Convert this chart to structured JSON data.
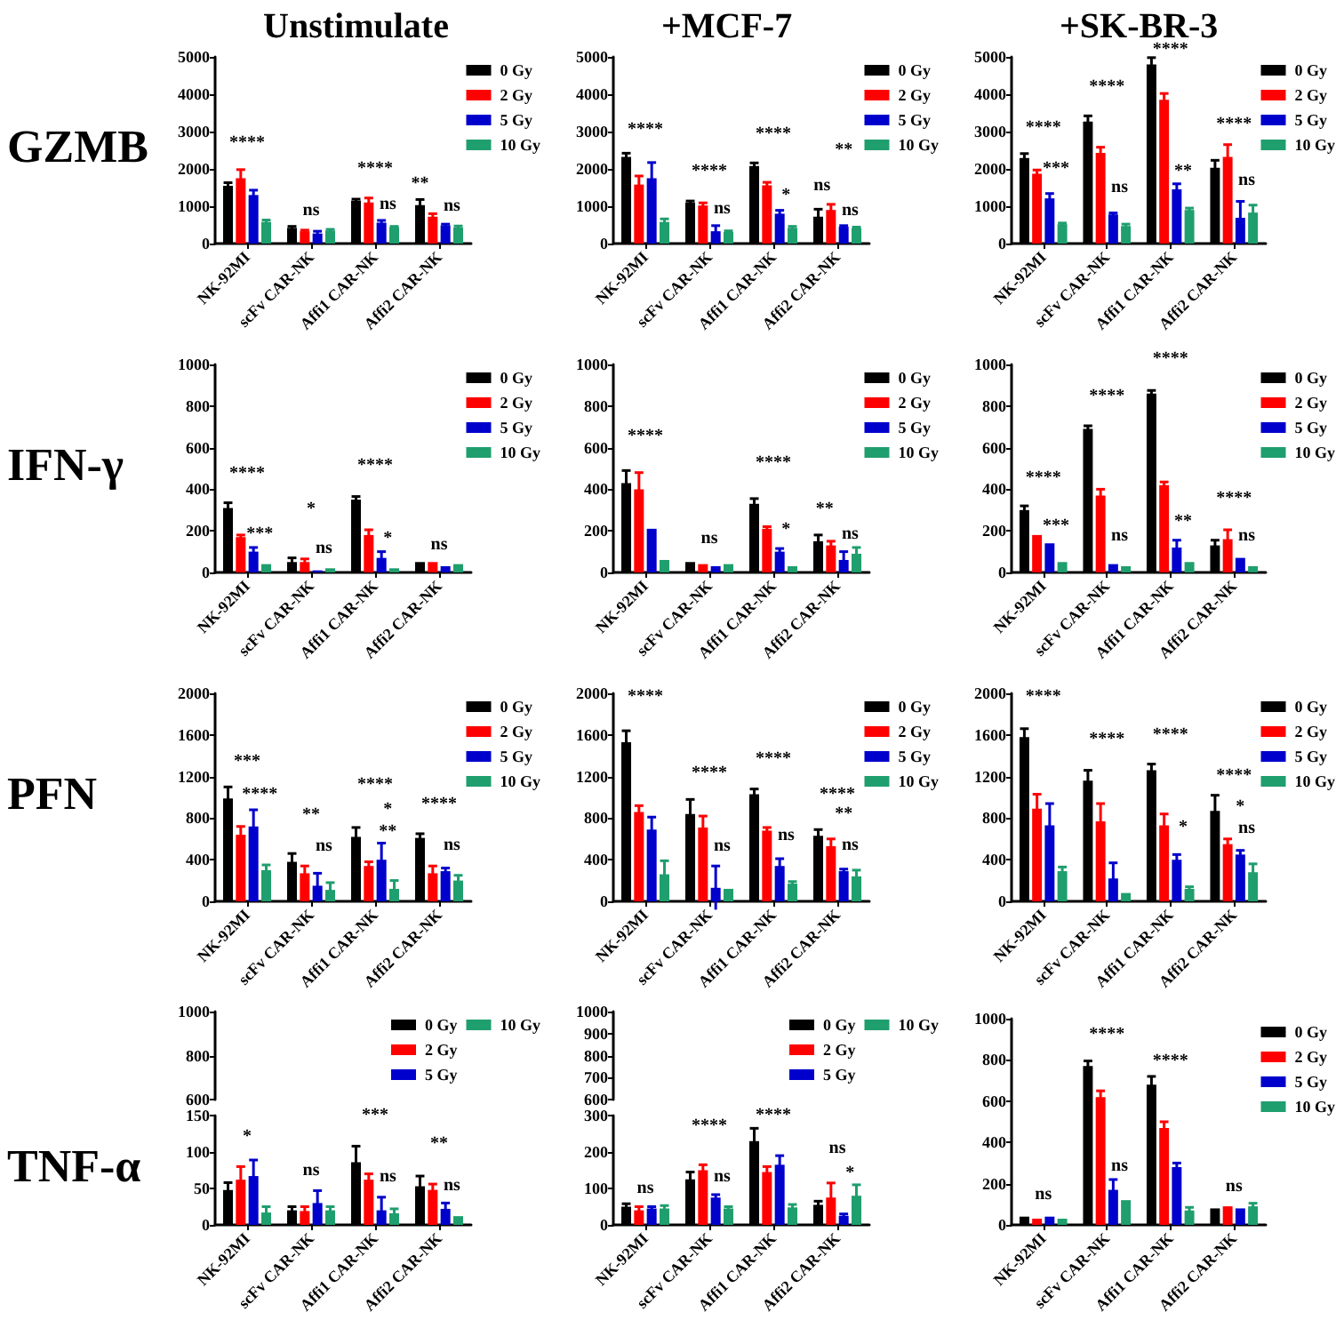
{
  "chart_data": [
    {
      "type": "bar",
      "title": "Unstimulate",
      "ylabel": "GZMB",
      "categories": [
        "NK-92MI",
        "scFv CAR-NK",
        "Affi1 CAR-NK",
        "Affi2 CAR-NK"
      ],
      "ylim": [
        0,
        5000
      ],
      "yticks": [
        0,
        1000,
        2000,
        3000,
        4000,
        5000
      ],
      "legend": "top right",
      "series": [
        {
          "name": "0 Gy",
          "color": "#000000",
          "values": [
            1550,
            420,
            1150,
            1030
          ],
          "errors": [
            80,
            40,
            40,
            150
          ]
        },
        {
          "name": "2 Gy",
          "color": "#ff0000",
          "values": [
            1750,
            330,
            1100,
            720
          ],
          "errors": [
            230,
            30,
            120,
            80
          ]
        },
        {
          "name": "5 Gy",
          "color": "#0000cc",
          "values": [
            1300,
            270,
            560,
            490
          ],
          "errors": [
            130,
            60,
            60,
            30
          ]
        },
        {
          "name": "10 Gy",
          "color": "#1f9e6e",
          "values": [
            580,
            350,
            440,
            430
          ],
          "errors": [
            50,
            30,
            20,
            40
          ]
        }
      ],
      "annotations": [
        "****",
        "ns",
        "****",
        "ns",
        "**",
        "ns"
      ]
    },
    {
      "type": "bar",
      "title": "+MCF-7",
      "categories": [
        "NK-92MI",
        "scFv CAR-NK",
        "Affi1 CAR-NK",
        "Affi2 CAR-NK"
      ],
      "ylim": [
        0,
        5000
      ],
      "yticks": [
        0,
        1000,
        2000,
        3000,
        4000,
        5000
      ],
      "legend": "top right",
      "series": [
        {
          "name": "0 Gy",
          "color": "#000000",
          "values": [
            2320,
            1100,
            2080,
            720
          ],
          "errors": [
            100,
            40,
            80,
            200
          ]
        },
        {
          "name": "2 Gy",
          "color": "#ff0000",
          "values": [
            1580,
            1020,
            1560,
            900
          ],
          "errors": [
            230,
            70,
            80,
            150
          ]
        },
        {
          "name": "5 Gy",
          "color": "#0000cc",
          "values": [
            1750,
            330,
            800,
            450
          ],
          "errors": [
            420,
            150,
            90,
            30
          ]
        },
        {
          "name": "10 Gy",
          "color": "#1f9e6e",
          "values": [
            580,
            310,
            420,
            410
          ],
          "errors": [
            80,
            30,
            40,
            30
          ]
        }
      ],
      "annotations": [
        "****",
        "****",
        "ns",
        "****",
        "*",
        "ns",
        "**",
        "ns"
      ]
    },
    {
      "type": "bar",
      "title": "+SK-BR-3",
      "categories": [
        "NK-92MI",
        "scFv CAR-NK",
        "Affi1 CAR-NK",
        "Affi2 CAR-NK"
      ],
      "ylim": [
        0,
        5000
      ],
      "yticks": [
        0,
        1000,
        2000,
        3000,
        4000,
        5000
      ],
      "legend": "top right",
      "series": [
        {
          "name": "0 Gy",
          "color": "#000000",
          "values": [
            2290,
            3270,
            4800,
            2030
          ],
          "errors": [
            120,
            150,
            180,
            200
          ]
        },
        {
          "name": "2 Gy",
          "color": "#ff0000",
          "values": [
            1870,
            2430,
            3850,
            2320
          ],
          "errors": [
            100,
            150,
            170,
            330
          ]
        },
        {
          "name": "5 Gy",
          "color": "#0000cc",
          "values": [
            1210,
            780,
            1450,
            690
          ],
          "errors": [
            130,
            40,
            150,
            440
          ]
        },
        {
          "name": "10 Gy",
          "color": "#1f9e6e",
          "values": [
            520,
            470,
            900,
            830
          ],
          "errors": [
            30,
            50,
            50,
            200
          ]
        }
      ],
      "annotations": [
        "****",
        "***",
        "****",
        "ns",
        "****",
        "**",
        "****",
        "ns"
      ]
    },
    {
      "type": "bar",
      "ylabel": "IFN-γ",
      "categories": [
        "NK-92MI",
        "scFv CAR-NK",
        "Affi1 CAR-NK",
        "Affi2 CAR-NK"
      ],
      "ylim": [
        0,
        1000
      ],
      "yticks": [
        0,
        200,
        400,
        600,
        800,
        1000
      ],
      "legend": "top right",
      "series": [
        {
          "name": "0 Gy",
          "color": "#000000",
          "values": [
            310,
            50,
            350,
            50
          ],
          "errors": [
            25,
            20,
            15,
            null
          ]
        },
        {
          "name": "2 Gy",
          "color": "#ff0000",
          "values": [
            170,
            50,
            180,
            50
          ],
          "errors": [
            10,
            15,
            25,
            null
          ]
        },
        {
          "name": "5 Gy",
          "color": "#0000cc",
          "values": [
            100,
            10,
            70,
            30
          ],
          "errors": [
            20,
            null,
            30,
            null
          ]
        },
        {
          "name": "10 Gy",
          "color": "#1f9e6e",
          "values": [
            40,
            20,
            20,
            40
          ],
          "errors": [
            null,
            null,
            null,
            null
          ]
        }
      ],
      "annotations": [
        "****",
        "***",
        "*",
        "ns",
        "****",
        "*",
        "ns"
      ]
    },
    {
      "type": "bar",
      "categories": [
        "NK-92MI",
        "scFv CAR-NK",
        "Affi1 CAR-NK",
        "Affi2 CAR-NK"
      ],
      "ylim": [
        0,
        1000
      ],
      "yticks": [
        0,
        200,
        400,
        600,
        800,
        1000
      ],
      "legend": "top right",
      "series": [
        {
          "name": "0 Gy",
          "color": "#000000",
          "values": [
            430,
            50,
            330,
            150
          ],
          "errors": [
            60,
            null,
            25,
            30
          ]
        },
        {
          "name": "2 Gy",
          "color": "#ff0000",
          "values": [
            400,
            40,
            210,
            130
          ],
          "errors": [
            80,
            null,
            10,
            20
          ]
        },
        {
          "name": "5 Gy",
          "color": "#0000cc",
          "values": [
            210,
            30,
            100,
            60
          ],
          "errors": [
            null,
            null,
            15,
            40
          ]
        },
        {
          "name": "10 Gy",
          "color": "#1f9e6e",
          "values": [
            60,
            40,
            30,
            90
          ],
          "errors": [
            null,
            null,
            null,
            30
          ]
        }
      ],
      "annotations": [
        "****",
        "ns",
        "****",
        "*",
        "**",
        "ns"
      ]
    },
    {
      "type": "bar",
      "categories": [
        "NK-92MI",
        "scFv CAR-NK",
        "Affi1 CAR-NK",
        "Affi2 CAR-NK"
      ],
      "ylim": [
        0,
        1000
      ],
      "yticks": [
        0,
        200,
        400,
        600,
        800,
        1000
      ],
      "legend": "top right",
      "series": [
        {
          "name": "0 Gy",
          "color": "#000000",
          "values": [
            300,
            690,
            860,
            130
          ],
          "errors": [
            20,
            15,
            15,
            25
          ]
        },
        {
          "name": "2 Gy",
          "color": "#ff0000",
          "values": [
            180,
            370,
            420,
            160
          ],
          "errors": [
            null,
            30,
            15,
            45
          ]
        },
        {
          "name": "5 Gy",
          "color": "#0000cc",
          "values": [
            140,
            40,
            120,
            70
          ],
          "errors": [
            null,
            null,
            35,
            null
          ]
        },
        {
          "name": "10 Gy",
          "color": "#1f9e6e",
          "values": [
            50,
            30,
            50,
            30
          ],
          "errors": [
            null,
            null,
            null,
            null
          ]
        }
      ],
      "annotations": [
        "****",
        "***",
        "****",
        "ns",
        "****",
        "**",
        "****",
        "ns"
      ]
    },
    {
      "type": "bar",
      "ylabel": "PFN",
      "categories": [
        "NK-92MI",
        "scFv CAR-NK",
        "Affi1 CAR-NK",
        "Affi2 CAR-NK"
      ],
      "ylim": [
        0,
        2000
      ],
      "yticks": [
        0,
        400,
        800,
        1200,
        1600,
        2000
      ],
      "legend": "top right",
      "series": [
        {
          "name": "0 Gy",
          "color": "#000000",
          "values": [
            990,
            380,
            620,
            610
          ],
          "errors": [
            110,
            80,
            90,
            40
          ]
        },
        {
          "name": "2 Gy",
          "color": "#ff0000",
          "values": [
            640,
            270,
            340,
            270
          ],
          "errors": [
            80,
            70,
            40,
            70
          ]
        },
        {
          "name": "5 Gy",
          "color": "#0000cc",
          "values": [
            720,
            150,
            400,
            290
          ],
          "errors": [
            160,
            120,
            160,
            30
          ]
        },
        {
          "name": "10 Gy",
          "color": "#1f9e6e",
          "values": [
            300,
            110,
            120,
            200
          ],
          "errors": [
            50,
            70,
            80,
            50
          ]
        }
      ],
      "annotations": [
        "***",
        "****",
        "**",
        "ns",
        "****",
        "*",
        "**",
        "****",
        "ns"
      ]
    },
    {
      "type": "bar",
      "categories": [
        "NK-92MI",
        "scFv CAR-NK",
        "Affi1 CAR-NK",
        "Affi2 CAR-NK"
      ],
      "ylim": [
        0,
        2000
      ],
      "yticks": [
        0,
        400,
        800,
        1200,
        1600,
        2000
      ],
      "legend": "top right",
      "series": [
        {
          "name": "0 Gy",
          "color": "#000000",
          "values": [
            1530,
            840,
            1030,
            630
          ],
          "errors": [
            110,
            140,
            50,
            60
          ]
        },
        {
          "name": "2 Gy",
          "color": "#ff0000",
          "values": [
            860,
            710,
            680,
            530
          ],
          "errors": [
            60,
            110,
            30,
            70
          ]
        },
        {
          "name": "5 Gy",
          "color": "#0000cc",
          "values": [
            690,
            130,
            340,
            290
          ],
          "errors": [
            120,
            210,
            70,
            20
          ]
        },
        {
          "name": "10 Gy",
          "color": "#1f9e6e",
          "values": [
            260,
            120,
            170,
            240
          ],
          "errors": [
            130,
            null,
            20,
            60
          ]
        }
      ],
      "annotations": [
        "****",
        "****",
        "ns",
        "****",
        "ns",
        "****",
        "**",
        "ns"
      ]
    },
    {
      "type": "bar",
      "categories": [
        "NK-92MI",
        "scFv CAR-NK",
        "Affi1 CAR-NK",
        "Affi2 CAR-NK"
      ],
      "ylim": [
        0,
        2000
      ],
      "yticks": [
        0,
        400,
        800,
        1200,
        1600,
        2000
      ],
      "legend": "top right",
      "series": [
        {
          "name": "0 Gy",
          "color": "#000000",
          "values": [
            1580,
            1160,
            1260,
            870
          ],
          "errors": [
            80,
            100,
            60,
            150
          ]
        },
        {
          "name": "2 Gy",
          "color": "#ff0000",
          "values": [
            890,
            770,
            730,
            550
          ],
          "errors": [
            140,
            170,
            110,
            50
          ]
        },
        {
          "name": "5 Gy",
          "color": "#0000cc",
          "values": [
            730,
            220,
            400,
            450
          ],
          "errors": [
            210,
            150,
            50,
            40
          ]
        },
        {
          "name": "10 Gy",
          "color": "#1f9e6e",
          "values": [
            290,
            80,
            120,
            280
          ],
          "errors": [
            40,
            null,
            20,
            80
          ]
        }
      ],
      "annotations": [
        "****",
        "****",
        "****",
        "*",
        "****",
        "*",
        "ns"
      ]
    },
    {
      "type": "bar",
      "categories": [
        null,
        null,
        null,
        null
      ],
      "ylim": [
        600,
        1000
      ],
      "yticks": [
        600,
        800,
        1000
      ],
      "tick_labels": "y",
      "legend": "top right",
      "series": [
        {
          "name": "0 Gy",
          "color": "#000000",
          "values": [
            null,
            null,
            null,
            null
          ]
        },
        {
          "name": "2 Gy",
          "color": "#ff0000",
          "values": [
            null,
            null,
            null,
            null
          ]
        },
        {
          "name": "5 Gy",
          "color": "#0000cc",
          "values": [
            null,
            null,
            null,
            null
          ]
        },
        {
          "name": "10 Gy",
          "color": "#1f9e6e",
          "values": [
            null,
            null,
            null,
            null
          ]
        }
      ]
    },
    {
      "type": "bar",
      "ylabel": "TNF-α",
      "categories": [
        "NK-92MI",
        "scFv CAR-NK",
        "Affi1 CAR-NK",
        "Affi2 CAR-NK"
      ],
      "ylim": [
        0,
        150
      ],
      "yticks": [
        0,
        50,
        100,
        150
      ],
      "series": [
        {
          "color": "#000000",
          "values": [
            48,
            20,
            86,
            53
          ],
          "errors": [
            10,
            5,
            22,
            14
          ]
        },
        {
          "color": "#ff0000",
          "values": [
            62,
            19,
            62,
            48
          ],
          "errors": [
            18,
            6,
            8,
            8
          ]
        },
        {
          "color": "#0000cc",
          "values": [
            67,
            30,
            20,
            22
          ],
          "errors": [
            22,
            17,
            18,
            8
          ]
        },
        {
          "color": "#1f9e6e",
          "values": [
            17,
            20,
            16,
            12
          ],
          "errors": [
            8,
            5,
            6,
            null
          ]
        }
      ],
      "annotations": [
        "*",
        "ns",
        "***",
        "ns",
        "**",
        "ns"
      ]
    },
    {
      "type": "bar",
      "categories": [
        null,
        null,
        null,
        null
      ],
      "ylim": [
        600,
        1000
      ],
      "yticks": [
        600,
        700,
        800,
        900,
        1000
      ],
      "tick_labels": "y",
      "legend": "top right",
      "series": [
        {
          "name": "0 Gy",
          "color": "#000000",
          "values": [
            null,
            null,
            null,
            null
          ]
        },
        {
          "name": "2 Gy",
          "color": "#ff0000",
          "values": [
            null,
            null,
            null,
            null
          ]
        },
        {
          "name": "5 Gy",
          "color": "#0000cc",
          "values": [
            null,
            null,
            null,
            null
          ]
        },
        {
          "name": "10 Gy",
          "color": "#1f9e6e",
          "values": [
            null,
            null,
            null,
            null
          ]
        }
      ]
    },
    {
      "type": "bar",
      "categories": [
        "NK-92MI",
        "scFv CAR-NK",
        "Affi1 CAR-NK",
        "Affi2 CAR-NK"
      ],
      "ylim": [
        0,
        300
      ],
      "yticks": [
        0,
        100,
        200,
        300
      ],
      "series": [
        {
          "color": "#000000",
          "values": [
            50,
            125,
            230,
            55
          ],
          "errors": [
            8,
            20,
            35,
            10
          ]
        },
        {
          "color": "#ff0000",
          "values": [
            40,
            150,
            145,
            75
          ],
          "errors": [
            10,
            15,
            15,
            40
          ]
        },
        {
          "color": "#0000cc",
          "values": [
            45,
            75,
            165,
            25
          ],
          "errors": [
            5,
            8,
            25,
            5
          ]
        },
        {
          "color": "#1f9e6e",
          "values": [
            45,
            45,
            48,
            80
          ],
          "errors": [
            8,
            5,
            8,
            30
          ]
        }
      ],
      "annotations": [
        "ns",
        "****",
        "ns",
        "****",
        "ns",
        "*"
      ]
    },
    {
      "type": "bar",
      "categories": [
        "NK-92MI",
        "scFv CAR-NK",
        "Affi1 CAR-NK",
        "Affi2 CAR-NK"
      ],
      "ylim": [
        0,
        1000
      ],
      "yticks": [
        0,
        200,
        400,
        600,
        800,
        1000
      ],
      "legend": "top right",
      "series": [
        {
          "name": "0 Gy",
          "color": "#000000",
          "values": [
            40,
            770,
            680,
            80
          ],
          "errors": [
            null,
            25,
            40,
            null
          ]
        },
        {
          "name": "2 Gy",
          "color": "#ff0000",
          "values": [
            30,
            620,
            470,
            90
          ],
          "errors": [
            null,
            30,
            30,
            null
          ]
        },
        {
          "name": "5 Gy",
          "color": "#0000cc",
          "values": [
            40,
            170,
            280,
            80
          ],
          "errors": [
            null,
            50,
            20,
            null
          ]
        },
        {
          "name": "10 Gy",
          "color": "#1f9e6e",
          "values": [
            30,
            120,
            70,
            90
          ],
          "errors": [
            null,
            null,
            15,
            15
          ]
        }
      ],
      "annotations": [
        "ns",
        "****",
        "ns",
        "****",
        "ns"
      ]
    }
  ]
}
